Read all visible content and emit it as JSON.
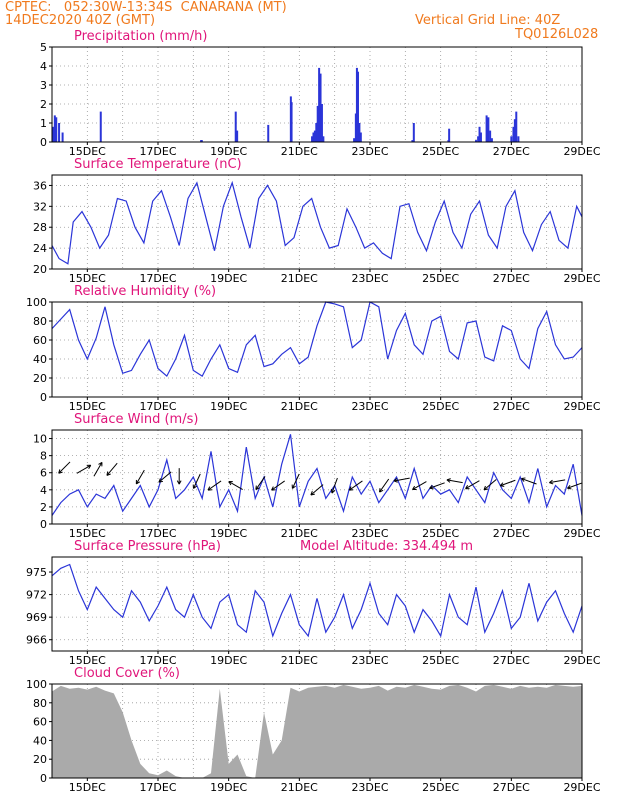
{
  "header": {
    "line1_left": "CPTEC:   052:30W-13:34S  CANARANA (MT)",
    "line2_left": "14DEC2020 40Z (GMT)",
    "line2_right": "Vertical Grid Line: 40Z",
    "line3_right": "TQ0126L028"
  },
  "colors": {
    "header": "#f07a1e",
    "title": "#e0157a",
    "line": "#2b35d8",
    "bar": "#2b35d8",
    "cloud": "#aaaaaa"
  },
  "x_axis": {
    "labels": [
      "15DEC",
      "17DEC",
      "19DEC",
      "21DEC",
      "23DEC",
      "25DEC",
      "27DEC",
      "29DEC"
    ],
    "start_day": 14.0,
    "end_day": 29.0
  },
  "chart_data": [
    {
      "type": "bar",
      "title": "Precipitation (mm/h)",
      "ylim": [
        0,
        5
      ],
      "yticks": [
        0,
        1,
        2,
        3,
        4,
        5
      ],
      "x_days": [
        14.04,
        14.08,
        14.12,
        14.2,
        14.3,
        15.38,
        18.22,
        18.24,
        19.2,
        19.24,
        20.12,
        20.76,
        20.78,
        21.36,
        21.4,
        21.44,
        21.48,
        21.52,
        21.56,
        21.6,
        21.64,
        21.68,
        22.55,
        22.6,
        22.63,
        22.66,
        22.7,
        22.74,
        24.2,
        24.24,
        25.22,
        25.24,
        26.0,
        26.06,
        26.1,
        26.14,
        26.3,
        26.35,
        26.4,
        26.45,
        27.0,
        27.06,
        27.1,
        27.14,
        27.2
      ],
      "values": [
        0.8,
        1.4,
        1.3,
        1.0,
        0.5,
        1.6,
        0.1,
        0.1,
        1.6,
        0.6,
        0.9,
        2.4,
        2.1,
        0.3,
        0.5,
        0.6,
        1.0,
        1.9,
        3.9,
        3.6,
        2.0,
        0.3,
        0.2,
        1.5,
        3.9,
        3.7,
        1.0,
        0.5,
        0.1,
        1.0,
        0.1,
        0.7,
        0.1,
        0.3,
        0.8,
        0.5,
        1.4,
        1.3,
        0.6,
        0.2,
        0.3,
        0.8,
        1.2,
        1.6,
        0.3
      ]
    },
    {
      "type": "line",
      "title": "Surface Temperature (nC)",
      "ylim": [
        20,
        38
      ],
      "yticks": [
        20,
        24,
        28,
        32,
        36
      ],
      "x_days": [
        14.0,
        14.2,
        14.45,
        14.6,
        14.85,
        15.1,
        15.35,
        15.6,
        15.85,
        16.1,
        16.35,
        16.6,
        16.85,
        17.1,
        17.35,
        17.6,
        17.85,
        18.1,
        18.35,
        18.6,
        18.85,
        19.1,
        19.35,
        19.6,
        19.85,
        20.1,
        20.35,
        20.6,
        20.85,
        21.1,
        21.35,
        21.6,
        21.85,
        22.1,
        22.35,
        22.6,
        22.85,
        23.1,
        23.35,
        23.6,
        23.85,
        24.1,
        24.35,
        24.6,
        24.85,
        25.1,
        25.35,
        25.6,
        25.85,
        26.1,
        26.35,
        26.6,
        26.85,
        27.1,
        27.35,
        27.6,
        27.85,
        28.1,
        28.35,
        28.6,
        28.85,
        29.0
      ],
      "values": [
        24.5,
        22.0,
        21.0,
        29.0,
        31.0,
        28.0,
        24.0,
        26.5,
        33.5,
        33.0,
        28.0,
        25.0,
        33.0,
        35.0,
        30.0,
        24.5,
        33.5,
        36.5,
        30.0,
        23.5,
        32.0,
        36.5,
        30.0,
        24.0,
        33.5,
        36.0,
        33.0,
        24.5,
        26.0,
        32.0,
        33.5,
        28.0,
        24.0,
        24.5,
        31.5,
        28.0,
        24.0,
        25.0,
        23.0,
        22.0,
        32.0,
        32.5,
        27.0,
        23.5,
        29.0,
        33.0,
        27.0,
        24.0,
        30.5,
        33.0,
        26.5,
        24.0,
        32.0,
        35.0,
        27.0,
        23.5,
        28.5,
        31.0,
        25.5,
        24.0,
        32.0,
        30.0
      ]
    },
    {
      "type": "line",
      "title": "Relative Humidity (%)",
      "ylim": [
        0,
        100
      ],
      "yticks": [
        0,
        20,
        40,
        60,
        80,
        100
      ],
      "x_days": [
        14.0,
        14.25,
        14.5,
        14.75,
        15.0,
        15.25,
        15.5,
        15.75,
        16.0,
        16.25,
        16.5,
        16.75,
        17.0,
        17.25,
        17.5,
        17.75,
        18.0,
        18.25,
        18.5,
        18.75,
        19.0,
        19.25,
        19.5,
        19.75,
        20.0,
        20.25,
        20.5,
        20.75,
        21.0,
        21.25,
        21.5,
        21.75,
        22.0,
        22.25,
        22.5,
        22.75,
        23.0,
        23.25,
        23.5,
        23.75,
        24.0,
        24.25,
        24.5,
        24.75,
        25.0,
        25.25,
        25.5,
        25.75,
        26.0,
        26.25,
        26.5,
        26.75,
        27.0,
        27.25,
        27.5,
        27.75,
        28.0,
        28.25,
        28.5,
        28.75,
        29.0
      ],
      "values": [
        72,
        82,
        92,
        60,
        40,
        62,
        95,
        55,
        25,
        28,
        45,
        60,
        30,
        22,
        40,
        65,
        28,
        22,
        40,
        55,
        30,
        26,
        55,
        65,
        32,
        35,
        45,
        52,
        35,
        42,
        75,
        100,
        98,
        95,
        52,
        60,
        100,
        95,
        40,
        70,
        88,
        55,
        45,
        80,
        85,
        48,
        40,
        78,
        80,
        42,
        38,
        75,
        70,
        40,
        30,
        72,
        90,
        55,
        40,
        42,
        52
      ]
    },
    {
      "type": "line",
      "title": "Surface Wind (m/s)",
      "ylim": [
        0,
        11
      ],
      "yticks": [
        0,
        2,
        4,
        6,
        8,
        10
      ],
      "x_days": [
        14.0,
        14.25,
        14.5,
        14.75,
        15.0,
        15.25,
        15.5,
        15.75,
        16.0,
        16.25,
        16.5,
        16.75,
        17.0,
        17.25,
        17.5,
        17.75,
        18.0,
        18.25,
        18.5,
        18.75,
        19.0,
        19.25,
        19.5,
        19.75,
        20.0,
        20.25,
        20.5,
        20.75,
        21.0,
        21.25,
        21.5,
        21.75,
        22.0,
        22.25,
        22.5,
        22.75,
        23.0,
        23.25,
        23.5,
        23.75,
        24.0,
        24.25,
        24.5,
        24.75,
        25.0,
        25.25,
        25.5,
        25.75,
        26.0,
        26.25,
        26.5,
        26.75,
        27.0,
        27.25,
        27.5,
        27.75,
        28.0,
        28.25,
        28.5,
        28.75,
        29.0
      ],
      "values": [
        1.0,
        2.5,
        3.5,
        4.0,
        2.0,
        3.5,
        3.0,
        4.5,
        1.5,
        3.0,
        4.5,
        2.0,
        4.0,
        7.5,
        3.0,
        4.0,
        5.5,
        3.0,
        8.5,
        2.0,
        4.0,
        1.5,
        9.0,
        3.0,
        5.5,
        2.0,
        7.0,
        10.5,
        2.0,
        5.0,
        6.5,
        3.0,
        4.5,
        1.5,
        5.5,
        3.5,
        5.0,
        2.5,
        4.0,
        5.5,
        3.0,
        6.5,
        3.0,
        4.5,
        3.5,
        4.0,
        2.5,
        5.5,
        4.0,
        2.5,
        6.0,
        4.0,
        3.0,
        5.5,
        2.5,
        6.5,
        2.0,
        4.5,
        3.5,
        7.0,
        1.0
      ],
      "arrows": [
        {
          "x": 14.35,
          "y": 6.6,
          "angle": 225
        },
        {
          "x": 14.9,
          "y": 6.4,
          "angle": 30
        },
        {
          "x": 15.3,
          "y": 6.4,
          "angle": 60
        },
        {
          "x": 15.7,
          "y": 6.4,
          "angle": 230
        },
        {
          "x": 16.5,
          "y": 5.5,
          "angle": 240
        },
        {
          "x": 17.2,
          "y": 5.5,
          "angle": 220
        },
        {
          "x": 17.6,
          "y": 5.6,
          "angle": 270
        },
        {
          "x": 18.1,
          "y": 5.0,
          "angle": 245
        },
        {
          "x": 18.6,
          "y": 4.5,
          "angle": 215
        },
        {
          "x": 19.2,
          "y": 4.5,
          "angle": 150
        },
        {
          "x": 19.9,
          "y": 4.8,
          "angle": 235
        },
        {
          "x": 20.4,
          "y": 4.5,
          "angle": 215
        },
        {
          "x": 20.9,
          "y": 5.0,
          "angle": 245
        },
        {
          "x": 21.5,
          "y": 4.0,
          "angle": 220
        },
        {
          "x": 22.0,
          "y": 4.5,
          "angle": 250
        },
        {
          "x": 22.6,
          "y": 4.5,
          "angle": 215
        },
        {
          "x": 23.4,
          "y": 4.5,
          "angle": 235
        },
        {
          "x": 23.9,
          "y": 5.2,
          "angle": 190
        },
        {
          "x": 24.4,
          "y": 4.5,
          "angle": 210
        },
        {
          "x": 24.9,
          "y": 4.5,
          "angle": 200
        },
        {
          "x": 25.4,
          "y": 5.0,
          "angle": 170
        },
        {
          "x": 25.9,
          "y": 4.6,
          "angle": 210
        },
        {
          "x": 26.4,
          "y": 4.6,
          "angle": 220
        },
        {
          "x": 26.9,
          "y": 4.8,
          "angle": 200
        },
        {
          "x": 27.5,
          "y": 5.0,
          "angle": 160
        },
        {
          "x": 28.3,
          "y": 5.0,
          "angle": 190
        },
        {
          "x": 28.8,
          "y": 4.5,
          "angle": 200
        }
      ]
    },
    {
      "type": "line",
      "title": "Surface Pressure (hPa)",
      "subtitle": "Model Altitude: 334.494 m",
      "ylim": [
        964.5,
        977
      ],
      "yticks": [
        966,
        969,
        972,
        975
      ],
      "x_days": [
        14.0,
        14.25,
        14.5,
        14.75,
        15.0,
        15.25,
        15.5,
        15.75,
        16.0,
        16.25,
        16.5,
        16.75,
        17.0,
        17.25,
        17.5,
        17.75,
        18.0,
        18.25,
        18.5,
        18.75,
        19.0,
        19.25,
        19.5,
        19.75,
        20.0,
        20.25,
        20.5,
        20.75,
        21.0,
        21.25,
        21.5,
        21.75,
        22.0,
        22.25,
        22.5,
        22.75,
        23.0,
        23.25,
        23.5,
        23.75,
        24.0,
        24.25,
        24.5,
        24.75,
        25.0,
        25.25,
        25.5,
        25.75,
        26.0,
        26.25,
        26.5,
        26.75,
        27.0,
        27.25,
        27.5,
        27.75,
        28.0,
        28.25,
        28.5,
        28.75,
        29.0
      ],
      "values": [
        974.5,
        975.5,
        976.0,
        972.5,
        970.0,
        973.0,
        971.5,
        970.0,
        969.0,
        972.5,
        971.0,
        968.5,
        970.5,
        973.0,
        970.0,
        969.0,
        972.0,
        969.0,
        967.5,
        971.0,
        972.0,
        968.0,
        967.0,
        972.5,
        971.0,
        966.5,
        969.5,
        972.0,
        968.0,
        966.5,
        971.5,
        967.0,
        969.0,
        972.0,
        967.5,
        970.0,
        973.5,
        969.5,
        968.0,
        972.0,
        970.5,
        967.0,
        970.0,
        968.5,
        966.5,
        972.0,
        969.0,
        968.0,
        973.0,
        967.0,
        969.5,
        972.5,
        967.5,
        969.0,
        973.5,
        968.5,
        971.0,
        972.5,
        969.5,
        967.0,
        970.5
      ]
    },
    {
      "type": "bar",
      "title": "Cloud Cover (%)",
      "ylim": [
        0,
        100
      ],
      "yticks": [
        0,
        20,
        40,
        60,
        80,
        100
      ],
      "x_days": [
        14.0,
        14.25,
        14.5,
        14.75,
        15.0,
        15.25,
        15.5,
        15.75,
        16.0,
        16.25,
        16.5,
        16.75,
        17.0,
        17.25,
        17.5,
        17.75,
        18.0,
        18.25,
        18.5,
        18.75,
        19.0,
        19.25,
        19.5,
        19.75,
        20.0,
        20.25,
        20.5,
        20.75,
        21.0,
        21.25,
        21.5,
        21.75,
        22.0,
        22.25,
        22.5,
        22.75,
        23.0,
        23.25,
        23.5,
        23.75,
        24.0,
        24.25,
        24.5,
        24.75,
        25.0,
        25.25,
        25.5,
        25.75,
        26.0,
        26.25,
        26.5,
        26.75,
        27.0,
        27.25,
        27.5,
        27.75,
        28.0,
        28.25,
        28.5,
        28.75,
        29.0
      ],
      "values": [
        92,
        98,
        95,
        96,
        94,
        97,
        93,
        90,
        70,
        40,
        15,
        5,
        3,
        8,
        2,
        0,
        0,
        0,
        5,
        95,
        15,
        25,
        2,
        0,
        70,
        25,
        40,
        96,
        92,
        96,
        97,
        98,
        96,
        99,
        97,
        95,
        96,
        98,
        93,
        97,
        96,
        99,
        97,
        95,
        94,
        98,
        99,
        96,
        92,
        98,
        99,
        97,
        95,
        98,
        96,
        97,
        96,
        99,
        98,
        97,
        98
      ]
    }
  ]
}
